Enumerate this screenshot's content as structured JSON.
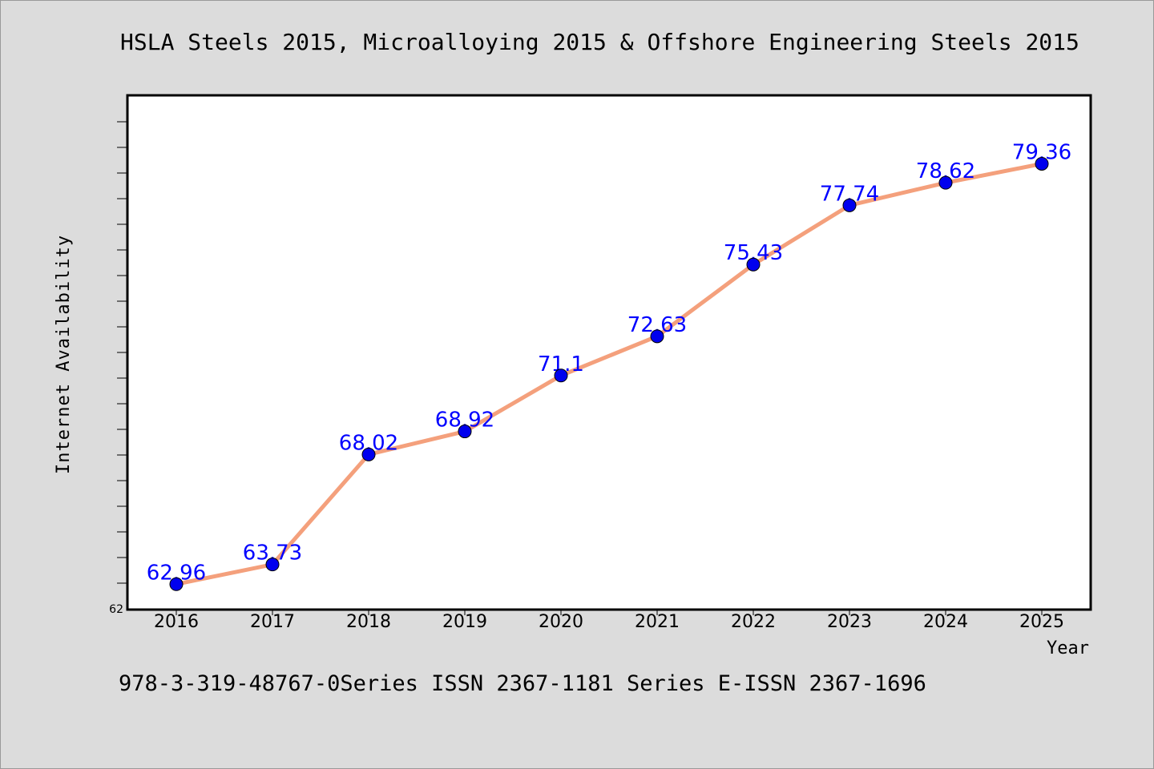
{
  "chart_data": {
    "type": "line",
    "title": "HSLA Steels 2015, Microalloying 2015 & Offshore Engineering Steels 2015",
    "xlabel": "Year",
    "ylabel": "Internet Availability",
    "categories": [
      "2016",
      "2017",
      "2018",
      "2019",
      "2020",
      "2021",
      "2022",
      "2023",
      "2024",
      "2025"
    ],
    "series": [
      {
        "values": [
          62.96,
          63.73,
          68.02,
          68.92,
          71.1,
          72.63,
          75.43,
          77.74,
          78.62,
          79.36
        ],
        "data_labels": [
          "62.96",
          "63.73",
          "68.02",
          "68.92",
          "71.1",
          "72.63",
          "75.43",
          "77.74",
          "78.62",
          "79.36"
        ]
      }
    ],
    "ylim": [
      62,
      82
    ],
    "ytick_labels": [
      "62"
    ],
    "grid": false,
    "colors": {
      "line": "#f4a07c",
      "marker": "#0000ee",
      "data_label": "#0000ff"
    }
  },
  "footer": "978-3-319-48767-0Series ISSN 2367-1181 Series E-ISSN 2367-1696"
}
